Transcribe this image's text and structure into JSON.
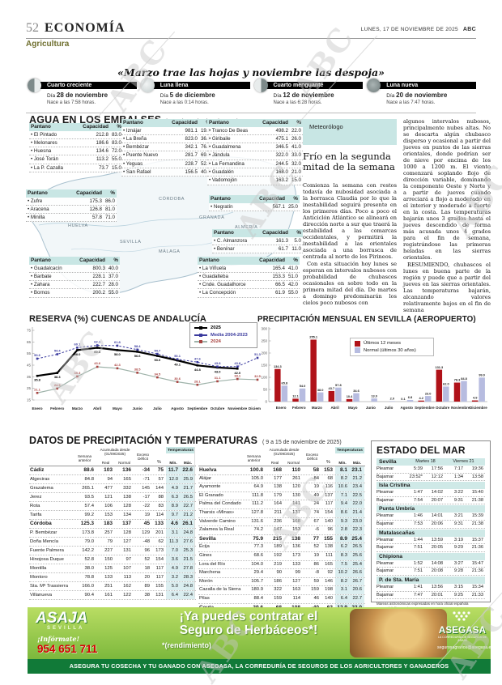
{
  "header": {
    "page_number": "52",
    "section": "ECONOMÍA",
    "subsection": "Agricultura",
    "date": "LUNES, 17 DE NOVIEMBRE DE 2025",
    "brand": "ABC"
  },
  "quote": "«Marzo trae las hojas y noviembre las despoja»",
  "moon": {
    "day_label": "Día",
    "phases": [
      {
        "name": "Cuarto creciente",
        "date": "28 de noviembre",
        "rise": "Nace a las 7:58 horas."
      },
      {
        "name": "Luna llena",
        "date": "5 de diciembre",
        "rise": "Nace a las 0:14 horas."
      },
      {
        "name": "Cuarto menguante",
        "date": "12 de noviembre",
        "rise": "Nace a las 6:28 horas."
      },
      {
        "name": "Luna nueva",
        "date": "20 de noviembre",
        "rise": "Nace a las 7:47 horas."
      }
    ]
  },
  "embalses": {
    "title": "AGUA EN LOS EMBALSES",
    "subtitle": "(A 14 de noviembre de 2025)",
    "col_headers": [
      "Pantano",
      "Capacidad",
      "%"
    ],
    "map_labels": [
      "HUELVA",
      "SEVILLA",
      "CÓRDOBA",
      "GRANADA",
      "ALMERÍA",
      "MÁLAGA",
      "CÁDIZ"
    ],
    "tables": {
      "a": {
        "rows": [
          [
            "El Pintado",
            "212.8",
            "83.0"
          ],
          [
            "Melonares",
            "186.6",
            "83.0"
          ],
          [
            "Huesna",
            "134.6",
            "72.0"
          ],
          [
            "José Torán",
            "113.2",
            "55.0"
          ],
          [
            "La P. Cazalla",
            "73.7",
            "15.0"
          ]
        ]
      },
      "c": {
        "rows": [
          [
            "Iznájar",
            "981.1",
            "19.0"
          ],
          [
            "La Breña",
            "823.0",
            "36.0"
          ],
          [
            "Bembézar",
            "342.1",
            "76.0"
          ],
          [
            "Puente Nuevo",
            "281.7",
            "69.0"
          ],
          [
            "Yeguas",
            "228.7",
            "52.0"
          ],
          [
            "San Rafael",
            "156.5",
            "40.0"
          ]
        ]
      },
      "d": {
        "rows": [
          [
            "Tranco De Beas",
            "498.2",
            "22.0"
          ],
          [
            "Giribaile",
            "475.1",
            "26.0"
          ],
          [
            "Guadalmena",
            "346.5",
            "41.0"
          ],
          [
            "Jándula",
            "322.0",
            "33.0"
          ],
          [
            "La Fernandina",
            "244.5",
            "32.0"
          ],
          [
            "Guadalén",
            "168.0",
            "21.0"
          ],
          [
            "Vadomojón",
            "163.2",
            "15.0"
          ]
        ]
      },
      "b": {
        "rows": [
          [
            "Zufre",
            "175.3",
            "86.0"
          ],
          [
            "Aracena",
            "126.8",
            "81.0"
          ],
          [
            "Minilla",
            "57.8",
            "71.0"
          ]
        ]
      },
      "e": {
        "rows": [
          [
            "Negratín",
            "567.1",
            "25.0"
          ]
        ]
      },
      "f": {
        "rows": [
          [
            "C. Almanzora",
            "161.3",
            "5.0"
          ],
          [
            "Benínar",
            "61.7",
            "11.0"
          ]
        ]
      },
      "g": {
        "rows": [
          [
            "Guadalcacín",
            "800.3",
            "40.0"
          ],
          [
            "Barbate",
            "228.1",
            "37.0"
          ],
          [
            "Zahara",
            "222.7",
            "28.0"
          ],
          [
            "Bornos",
            "200.2",
            "55.0"
          ]
        ]
      },
      "h": {
        "rows": [
          [
            "La Viñuela",
            "165.4",
            "41.0"
          ],
          [
            "Guadalteba",
            "153.3",
            "51.0"
          ],
          [
            "Cnde. Guadalhorce",
            "66.5",
            "42.0"
          ],
          [
            "La Concepción",
            "61.9",
            "55.0"
          ]
        ]
      }
    }
  },
  "forecast": {
    "label": "Meteorólogo",
    "title": "Frío en la segunda mitad de la semana",
    "col1": [
      "Comienza la semana con restos todavía de nubosidad asociada a la borrasca Claudia por lo que la inestabilidad seguirá presente en los primeros días. Poco a poco el Anticiclón Atlántico se alineará en dirección norte a sur que traerá la estabilidad a las comarcas occidentales, y permitirá la inestabilidad a las orientales asociada a una borrasca de centrada al norte de los Pirineos.",
      "Con esta situación hoy lunes se esperan en intervalos nubosos con probabilidad de chubascos ocasionales en sobre todo en la primera mitad del día. De martes a domingo predominarán los cielos poco nubosos con"
    ],
    "col2": [
      "algunos intervalos nubosos, principalmente nubes altas. No se descarta algún chubasco disperso y ocasional a partir del jueves en puntos de las sierras orientales, donde podrían ser de nieve por encima de los 1000 a 1200 m. El viento comenzará soplando flojo de dirección variable, dominando la componente Oeste y Norte y a partir de jueves cuando arreciará a flojo a moderado en el interior y moderado a fuerte en la costa. Las temperaturas bajarán unos 3 grados hasta el jueves descendido de forma más acusada unos 4 grados para el fin de semana, registrándose las primeras heladas en las sierras orientales.",
      "RESUMIENDO, chubascos el lunes en buena parte de la región y puede que a partir del jueves en las sierras orientales. Las temperaturas bajarán, alcanzando valores relativamente bajos en el fin de semana"
    ]
  },
  "chart_data": [
    {
      "type": "line",
      "title": "RESERVA (%) CUENCAS DE ANDALUCÍA",
      "categories": [
        "Enero",
        "Febrero",
        "Marzo",
        "Abril",
        "Mayo",
        "Junio",
        "Julio",
        "Agosto",
        "Septiembre",
        "Octubre",
        "Noviembre",
        "Diciembre"
      ],
      "ylim": [
        15,
        75
      ],
      "yticks": [
        15,
        25,
        35,
        45,
        55,
        65,
        75
      ],
      "grid": false,
      "legend_position": "top-right",
      "series": [
        {
          "name": "2025",
          "color": "#000000",
          "width": 2.2,
          "label_pos": "below",
          "values": [
            35.8,
            38.3,
            58.0,
            60.0,
            58.0,
            56.6,
            53.0,
            49.1,
            44.8,
            43.0,
            42.0,
            null
          ]
        },
        {
          "name": "Media 2004-2023",
          "color": "#3b3b9e",
          "dashed": true,
          "width": 1,
          "label_pos": "above",
          "values": [
            50.6,
            54.4,
            60.1,
            62.1,
            61.8,
            58.4,
            54.7,
            50.1,
            47.6,
            43.8,
            43.8,
            51.3
          ]
        },
        {
          "name": "2024",
          "color": "#a8423f",
          "line_color": "#9fb3aa",
          "width": 1.2,
          "label_pos": "above",
          "values": [
            21.1,
            24.9,
            35.3,
            43.6,
            42.3,
            38.5,
            34.5,
            30.6,
            28.1,
            31.1,
            33.1,
            32.5
          ]
        }
      ]
    },
    {
      "type": "bar",
      "title": "PRECIPITACIÓN MENSUAL EN SEVILLA (AEROPUERTO)",
      "categories": [
        "Enero",
        "Febrero",
        "Marzo",
        "Abril",
        "Mayo",
        "Junio",
        "Julio",
        "Agosto",
        "Septiembre",
        "Octubre",
        "Noviembre",
        "Diciembre"
      ],
      "ylim": [
        0,
        300
      ],
      "yticks": [
        0,
        50,
        100,
        150,
        200,
        250,
        300
      ],
      "grid": false,
      "legend_position": "top",
      "series": [
        {
          "name": "Últimos 12 meses",
          "color": "#b01219",
          "values": [
            134.3,
            12.1,
            255.1,
            43.7,
            10.4,
            0,
            0,
            0.1,
            4.2,
            131.3,
            78.3,
            4.9
          ]
        },
        {
          "name": "Normal (últimos 30 años)",
          "color": "#b7bce0",
          "values": [
            65.8,
            54.0,
            38.0,
            57.8,
            34.6,
            13.0,
            2.0,
            6.8,
            23.0,
            62.0,
            84.8,
            99.0
          ]
        }
      ]
    }
  ],
  "precip_table": {
    "title": "DATOS DE PRECIPITACIÓN Y TEMPERATURAS",
    "subtitle": "( 9 a 15 de noviembre de 2025)",
    "headers": {
      "semana": "Semana anterior",
      "acumulada": "Acumulada desde (01/09/2025)",
      "real": "Real",
      "normal": "Normal",
      "exceso": "Exceso Déficit",
      "pct": "%",
      "temperaturas": "Temperaturas",
      "min": "Mín.",
      "max": "Máx."
    },
    "left_rows": [
      {
        "name": "Cádiz",
        "bold": true,
        "values": [
          "88.6",
          "103",
          "136",
          "-34",
          "75",
          "11.7",
          "22.6"
        ]
      },
      {
        "name": "Algeciras",
        "values": [
          "84.8",
          "94",
          "165",
          "-71",
          "57",
          "12.0",
          "25.9"
        ]
      },
      {
        "name": "Grazalema",
        "values": [
          "265.1",
          "477",
          "332",
          "145",
          "144",
          "4.9",
          "21.7"
        ]
      },
      {
        "name": "Jerez",
        "values": [
          "93.5",
          "121",
          "138",
          "-17",
          "88",
          "6.3",
          "26.5"
        ]
      },
      {
        "name": "Rota",
        "values": [
          "57.4",
          "106",
          "128",
          "-22",
          "83",
          "8.9",
          "22.7"
        ]
      },
      {
        "name": "Tarifa",
        "values": [
          "99.2",
          "153",
          "134",
          "19",
          "114",
          "9.7",
          "21.2"
        ]
      },
      {
        "name": "Córdoba",
        "bold": true,
        "values": [
          "125.3",
          "183",
          "137",
          "45",
          "133",
          "4.6",
          "26.1"
        ]
      },
      {
        "name": "P. Bembézar",
        "values": [
          "173.8",
          "257",
          "128",
          "129",
          "201",
          "3.1",
          "24.8"
        ]
      },
      {
        "name": "Doña Mencía",
        "values": [
          "79.0",
          "79",
          "127",
          "-48",
          "62",
          "11.3",
          "27.6"
        ]
      },
      {
        "name": "Fuente Palmera",
        "values": [
          "142.2",
          "227",
          "131",
          "96",
          "173",
          "7.0",
          "25.3"
        ]
      },
      {
        "name": "Hinojosa Duque",
        "values": [
          "52.8",
          "150",
          "97",
          "52",
          "154",
          "3.6",
          "21.5"
        ]
      },
      {
        "name": "Montilla",
        "values": [
          "38.0",
          "125",
          "107",
          "18",
          "117",
          "4.9",
          "27.8"
        ]
      },
      {
        "name": "Montoro",
        "values": [
          "78.8",
          "133",
          "113",
          "20",
          "117",
          "3.2",
          "28.3"
        ]
      },
      {
        "name": "Sta. Mª Trassierra",
        "values": [
          "166.0",
          "251",
          "162",
          "89",
          "155",
          "5.0",
          "24.8"
        ]
      },
      {
        "name": "Villanueva",
        "values": [
          "90.4",
          "161",
          "122",
          "38",
          "131",
          "6.4",
          "22.4"
        ]
      }
    ],
    "right_rows": [
      {
        "name": "Huelva",
        "bold": true,
        "values": [
          "100.8",
          "168",
          "110",
          "58",
          "153",
          "8.1",
          "23.1"
        ]
      },
      {
        "name": "Alájar",
        "values": [
          "105.0",
          "177",
          "261",
          "-84",
          "68",
          "8.2",
          "21.2"
        ]
      },
      {
        "name": "Ayamonte",
        "values": [
          "64.9",
          "138",
          "120",
          "19",
          "116",
          "10.6",
          "23.4"
        ]
      },
      {
        "name": "El Granado",
        "values": [
          "111.8",
          "179",
          "130",
          "49",
          "137",
          "7.1",
          "22.5"
        ]
      },
      {
        "name": "Palma del Condado",
        "values": [
          "111.2",
          "164",
          "141",
          "24",
          "117",
          "9.4",
          "22.0"
        ]
      },
      {
        "name": "Tharsis «Minas»",
        "values": [
          "127.8",
          "211",
          "137",
          "74",
          "154",
          "8.6",
          "21.4"
        ]
      },
      {
        "name": "Valverde Camino",
        "values": [
          "131.6",
          "236",
          "168",
          "67",
          "140",
          "9.3",
          "23.0"
        ]
      },
      {
        "name": "Zalamea la Real",
        "values": [
          "74.2",
          "147",
          "153",
          "-6",
          "96",
          "2.8",
          "22.3"
        ]
      },
      {
        "name": "Sevilla",
        "bold": true,
        "values": [
          "75.9",
          "215",
          "138",
          "77",
          "155",
          "8.9",
          "25.4"
        ]
      },
      {
        "name": "Écija",
        "values": [
          "77.3",
          "189",
          "136",
          "52",
          "138",
          "6.2",
          "26.5"
        ]
      },
      {
        "name": "Gines",
        "values": [
          "68.6",
          "192",
          "173",
          "19",
          "111",
          "8.3",
          "25.6"
        ]
      },
      {
        "name": "Lora del Río",
        "values": [
          "104.0",
          "219",
          "133",
          "86",
          "165",
          "7.5",
          "25.4"
        ]
      },
      {
        "name": "Marchena",
        "values": [
          "29.4",
          "90",
          "99",
          "-8",
          "92",
          "10.2",
          "26.6"
        ]
      },
      {
        "name": "Morón",
        "values": [
          "105.7",
          "186",
          "127",
          "59",
          "146",
          "8.2",
          "26.7"
        ]
      },
      {
        "name": "Cazalla de la Sierra",
        "values": [
          "180.9",
          "322",
          "163",
          "159",
          "198",
          "3.1",
          "20.6"
        ]
      },
      {
        "name": "Pilas",
        "values": [
          "88.4",
          "159",
          "114",
          "46",
          "140",
          "6.4",
          "22.7"
        ]
      },
      {
        "name": "Ceuta",
        "bold": true,
        "values": [
          "39.6",
          "68",
          "108",
          "-40",
          "63",
          "12.9",
          "23.0"
        ]
      }
    ]
  },
  "sea": {
    "title": "ESTADO DEL MAR",
    "day_headers": [
      "Martes 18",
      "Viernes 21"
    ],
    "row_labels": [
      "Pleamar",
      "Bajamar"
    ],
    "locations": [
      {
        "name": "Sevilla",
        "pleamar": [
          "5:39",
          "17:56",
          "7:17",
          "19:36"
        ],
        "bajamar": [
          "23:52*",
          "12:12",
          "1:34",
          "13:58"
        ]
      },
      {
        "name": "Isla Cristina",
        "pleamar": [
          "1:47",
          "14:02",
          "3:22",
          "15:40"
        ],
        "bajamar": [
          "7:54",
          "20:07",
          "9:31",
          "21:38"
        ]
      },
      {
        "name": "Punta Umbría",
        "pleamar": [
          "1:46",
          "14:01",
          "3:21",
          "15:39"
        ],
        "bajamar": [
          "7:53",
          "20:06",
          "9:31",
          "21:38"
        ]
      },
      {
        "name": "Matalascañas",
        "pleamar": [
          "1:44",
          "13:59",
          "3:19",
          "15:37"
        ],
        "bajamar": [
          "7:51",
          "20:05",
          "9:29",
          "21:36"
        ]
      },
      {
        "name": "Chipiona",
        "pleamar": [
          "1:52",
          "14:08",
          "3:27",
          "15:47"
        ],
        "bajamar": [
          "7:51",
          "20:08",
          "9:28",
          "21:36"
        ]
      },
      {
        "name": "P. de Sta. María",
        "pleamar": [
          "1:41",
          "13:56",
          "3:15",
          "15:34"
        ],
        "bajamar": [
          "7:47",
          "20:01",
          "9:25",
          "21:33"
        ]
      }
    ],
    "footnotes": [
      "Mareas astronómicas expresadas en hora oficial española",
      "* Hora del día anterior",
      "Fuente: Red de Mareógrafos de Puertos del Estado"
    ]
  },
  "ad": {
    "brand": "ASAJA",
    "brand_sub": "SEVILLA",
    "informate": "¡Infórmate!",
    "phone": "954 651 711",
    "headline1": "¡Ya puedes contratar el",
    "headline2": "Seguro de Herbáceos*!",
    "note": "*(rendimiento)",
    "company": "ASEGASA",
    "company_sub": "LA CORREDURÍA DE SEGUROS DE ASAJA",
    "email": "segurosagrarios@asegasa.es",
    "strip": "ASEGURA TU COSECHA Y TU GANADO CON ASEGASA, LA CORREDURÍA DE SEGUROS DE LOS AGRICULTORES Y GANADEROS"
  },
  "watermark": "ABC"
}
